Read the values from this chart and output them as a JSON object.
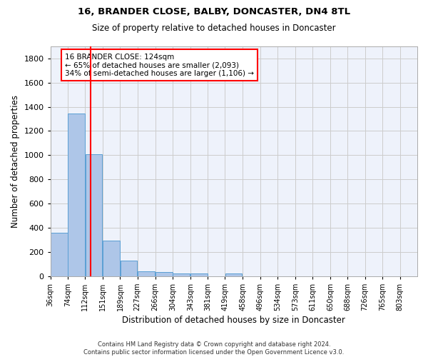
{
  "title1": "16, BRANDER CLOSE, BALBY, DONCASTER, DN4 8TL",
  "title2": "Size of property relative to detached houses in Doncaster",
  "xlabel": "Distribution of detached houses by size in Doncaster",
  "ylabel": "Number of detached properties",
  "footer1": "Contains HM Land Registry data © Crown copyright and database right 2024.",
  "footer2": "Contains public sector information licensed under the Open Government Licence v3.0.",
  "annotation_line1": "16 BRANDER CLOSE: 124sqm",
  "annotation_line2": "← 65% of detached houses are smaller (2,093)",
  "annotation_line3": "34% of semi-detached houses are larger (1,106) →",
  "bar_left_edges": [
    36,
    74,
    112,
    151,
    189,
    227,
    266,
    304,
    343,
    381,
    419,
    458,
    496,
    534,
    573,
    611,
    650,
    688,
    726,
    765
  ],
  "bar_widths": [
    38,
    38,
    38,
    38,
    38,
    38,
    38,
    38,
    38,
    38,
    38,
    38,
    38,
    38,
    38,
    38,
    38,
    38,
    38,
    38
  ],
  "bar_heights": [
    355,
    1345,
    1010,
    290,
    125,
    40,
    33,
    22,
    18,
    0,
    20,
    0,
    0,
    0,
    0,
    0,
    0,
    0,
    0,
    0
  ],
  "bar_color": "#aec6e8",
  "bar_edge_color": "#5a9fd4",
  "red_line_x": 124,
  "ylim": [
    0,
    1900
  ],
  "yticks": [
    0,
    200,
    400,
    600,
    800,
    1000,
    1200,
    1400,
    1600,
    1800
  ],
  "xtick_labels": [
    "36sqm",
    "74sqm",
    "112sqm",
    "151sqm",
    "189sqm",
    "227sqm",
    "266sqm",
    "304sqm",
    "343sqm",
    "381sqm",
    "419sqm",
    "458sqm",
    "496sqm",
    "534sqm",
    "573sqm",
    "611sqm",
    "650sqm",
    "688sqm",
    "726sqm",
    "765sqm",
    "803sqm"
  ],
  "xtick_positions": [
    36,
    74,
    112,
    151,
    189,
    227,
    266,
    304,
    343,
    381,
    419,
    458,
    496,
    534,
    573,
    611,
    650,
    688,
    726,
    765,
    803
  ],
  "grid_color": "#cccccc",
  "background_color": "#eef2fb",
  "xlim_left": 36,
  "xlim_right": 841
}
